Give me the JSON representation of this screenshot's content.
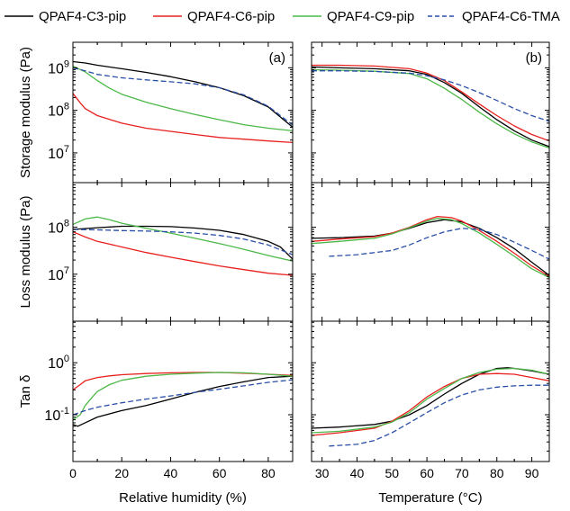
{
  "legend": {
    "placement": "top",
    "entries": [
      {
        "label": "QPAF4-C3-pip",
        "color": "#000000",
        "dash": false
      },
      {
        "label": "QPAF4-C6-pip",
        "color": "#e8201e",
        "dash": false
      },
      {
        "label": "QPAF4-C9-pip",
        "color": "#4cb848",
        "dash": false
      },
      {
        "label": "QPAF4-C6-TMA",
        "color": "#2a4fa8",
        "dash": true
      }
    ]
  },
  "columns": [
    {
      "panel_label": "(a)",
      "xlabel": "Relative humidity (%)",
      "xlim": [
        0,
        90
      ],
      "xticks": [
        "0",
        "20",
        "40",
        "60",
        "80"
      ],
      "xtick_values": [
        0,
        20,
        40,
        60,
        80
      ]
    },
    {
      "panel_label": "(b)",
      "xlabel": "Temperature (°C)",
      "xlim": [
        27,
        95
      ],
      "xticks": [
        "30",
        "40",
        "50",
        "60",
        "70",
        "80",
        "90"
      ],
      "xtick_values": [
        30,
        40,
        50,
        60,
        70,
        80,
        90
      ]
    }
  ],
  "rows": [
    {
      "ylabel": "Storage modulus (Pa)",
      "ylim_log10": [
        6.3,
        9.6
      ],
      "ticks": [
        {
          "base": "10",
          "exp": "9",
          "log": 9
        },
        {
          "base": "10",
          "exp": "8",
          "log": 8
        },
        {
          "base": "10",
          "exp": "7",
          "log": 7
        }
      ]
    },
    {
      "ylabel": "Loss modulus (Pa)",
      "ylim_log10": [
        6.0,
        8.95
      ],
      "ticks": [
        {
          "base": "10",
          "exp": "8",
          "log": 8
        },
        {
          "base": "10",
          "exp": "7",
          "log": 7
        }
      ]
    },
    {
      "ylabel": "Tan δ",
      "ylim_log10": [
        -1.9,
        0.8
      ],
      "ticks": [
        {
          "base": "10",
          "exp": "0",
          "log": 0
        },
        {
          "base": "10",
          "exp": "-1",
          "log": -1
        }
      ]
    }
  ],
  "chart_data": {
    "type": "line",
    "y_scale": "log",
    "grid": false,
    "panels": [
      {
        "row": 0,
        "col": 0,
        "series": [
          {
            "name": "QPAF4-C3-pip",
            "x": [
              0,
              5,
              10,
              20,
              30,
              40,
              50,
              60,
              70,
              80,
              90
            ],
            "y": [
              1400000000.0,
              1300000000.0,
              1150000000.0,
              950000000.0,
              780000000.0,
              620000000.0,
              470000000.0,
              340000000.0,
              220000000.0,
              120000000.0,
              40000000.0
            ]
          },
          {
            "name": "QPAF4-C6-pip",
            "x": [
              0,
              3,
              5,
              10,
              20,
              30,
              40,
              50,
              60,
              70,
              80,
              90
            ],
            "y": [
              250000000.0,
              150000000.0,
              110000000.0,
              75000000.0,
              50000000.0,
              38000000.0,
              32000000.0,
              27000000.0,
              23000000.0,
              21000000.0,
              19000000.0,
              17500000.0
            ]
          },
          {
            "name": "QPAF4-C9-pip",
            "x": [
              0,
              5,
              10,
              15,
              20,
              30,
              40,
              50,
              60,
              70,
              80,
              90
            ],
            "y": [
              1100000000.0,
              800000000.0,
              500000000.0,
              330000000.0,
              240000000.0,
              155000000.0,
              110000000.0,
              80000000.0,
              60000000.0,
              46000000.0,
              38000000.0,
              33000000.0
            ]
          },
          {
            "name": "QPAF4-C6-TMA",
            "x": [
              0,
              5,
              10,
              20,
              30,
              40,
              50,
              60,
              70,
              80,
              90
            ],
            "y": [
              1000000000.0,
              850000000.0,
              700000000.0,
              580000000.0,
              520000000.0,
              470000000.0,
              420000000.0,
              340000000.0,
              230000000.0,
              125000000.0,
              45000000.0
            ]
          }
        ]
      },
      {
        "row": 0,
        "col": 1,
        "series": [
          {
            "name": "QPAF4-C3-pip",
            "x": [
              27,
              35,
              45,
              55,
              60,
              65,
              70,
              75,
              80,
              85,
              90,
              95
            ],
            "y": [
              1050000000.0,
              1000000000.0,
              950000000.0,
              850000000.0,
              700000000.0,
              450000000.0,
              250000000.0,
              120000000.0,
              60000000.0,
              33000000.0,
              20000000.0,
              14000000.0
            ]
          },
          {
            "name": "QPAF4-C6-pip",
            "x": [
              27,
              35,
              45,
              55,
              60,
              65,
              70,
              75,
              80,
              85,
              90,
              95
            ],
            "y": [
              1150000000.0,
              1150000000.0,
              1100000000.0,
              950000000.0,
              750000000.0,
              500000000.0,
              270000000.0,
              140000000.0,
              75000000.0,
              43000000.0,
              27000000.0,
              19000000.0
            ]
          },
          {
            "name": "QPAF4-C9-pip",
            "x": [
              27,
              35,
              45,
              55,
              60,
              65,
              70,
              75,
              80,
              85,
              90,
              95
            ],
            "y": [
              900000000.0,
              880000000.0,
              830000000.0,
              730000000.0,
              550000000.0,
              330000000.0,
              180000000.0,
              90000000.0,
              48000000.0,
              28000000.0,
              18000000.0,
              13000000.0
            ]
          },
          {
            "name": "QPAF4-C6-TMA",
            "x": [
              27,
              35,
              45,
              55,
              60,
              65,
              70,
              75,
              80,
              85,
              90,
              95
            ],
            "y": [
              850000000.0,
              850000000.0,
              820000000.0,
              750000000.0,
              650000000.0,
              520000000.0,
              380000000.0,
              260000000.0,
              170000000.0,
              110000000.0,
              75000000.0,
              55000000.0
            ]
          }
        ]
      },
      {
        "row": 1,
        "col": 0,
        "series": [
          {
            "name": "QPAF4-C3-pip",
            "x": [
              0,
              10,
              20,
              30,
              40,
              50,
              60,
              70,
              80,
              85,
              90
            ],
            "y": [
              90000000.0,
              98000000.0,
              105000000.0,
              105000000.0,
              103000000.0,
              96000000.0,
              86000000.0,
              70000000.0,
              50000000.0,
              38000000.0,
              21000000.0
            ]
          },
          {
            "name": "QPAF4-C6-pip",
            "x": [
              0,
              5,
              10,
              20,
              30,
              40,
              50,
              60,
              70,
              80,
              90
            ],
            "y": [
              80000000.0,
              62000000.0,
              50000000.0,
              38000000.0,
              29000000.0,
              23000000.0,
              18500000.0,
              15000000.0,
              12500000.0,
              10500000.0,
              9500000.0
            ]
          },
          {
            "name": "QPAF4-C9-pip",
            "x": [
              0,
              5,
              10,
              15,
              20,
              30,
              40,
              50,
              60,
              70,
              80,
              90
            ],
            "y": [
              115000000.0,
              150000000.0,
              165000000.0,
              145000000.0,
              122000000.0,
              95000000.0,
              75000000.0,
              58000000.0,
              45000000.0,
              34000000.0,
              25000000.0,
              19000000.0
            ]
          },
          {
            "name": "QPAF4-C6-TMA",
            "x": [
              0,
              10,
              20,
              30,
              40,
              50,
              60,
              70,
              80,
              90
            ],
            "y": [
              90000000.0,
              88000000.0,
              85000000.0,
              83000000.0,
              80000000.0,
              75000000.0,
              67000000.0,
              56000000.0,
              42000000.0,
              26000000.0
            ]
          }
        ]
      },
      {
        "row": 1,
        "col": 1,
        "series": [
          {
            "name": "QPAF4-C3-pip",
            "x": [
              27,
              35,
              45,
              50,
              55,
              60,
              65,
              70,
              75,
              80,
              85,
              90,
              95
            ],
            "y": [
              58000000.0,
              60000000.0,
              65000000.0,
              75000000.0,
              95000000.0,
              125000000.0,
              145000000.0,
              130000000.0,
              95000000.0,
              60000000.0,
              35000000.0,
              18000000.0,
              9500000.0
            ]
          },
          {
            "name": "QPAF4-C6-pip",
            "x": [
              27,
              35,
              45,
              50,
              55,
              60,
              63,
              67,
              70,
              75,
              80,
              85,
              90,
              95
            ],
            "y": [
              50000000.0,
              56000000.0,
              63000000.0,
              75000000.0,
              100000000.0,
              145000000.0,
              170000000.0,
              160000000.0,
              135000000.0,
              85000000.0,
              50000000.0,
              28000000.0,
              15000000.0,
              9000000.0
            ]
          },
          {
            "name": "QPAF4-C9-pip",
            "x": [
              27,
              35,
              45,
              50,
              55,
              60,
              63,
              67,
              70,
              75,
              80,
              85,
              90,
              95
            ],
            "y": [
              45000000.0,
              50000000.0,
              58000000.0,
              72000000.0,
              98000000.0,
              135000000.0,
              155000000.0,
              145000000.0,
              120000000.0,
              75000000.0,
              43000000.0,
              24000000.0,
              13000000.0,
              8500000.0
            ]
          },
          {
            "name": "QPAF4-C6-TMA",
            "x": [
              32,
              40,
              50,
              55,
              60,
              65,
              70,
              75,
              80,
              85,
              90,
              95
            ],
            "y": [
              24000000.0,
              26000000.0,
              32000000.0,
              42000000.0,
              60000000.0,
              80000000.0,
              95000000.0,
              90000000.0,
              70000000.0,
              48000000.0,
              32000000.0,
              21000000.0
            ]
          }
        ]
      },
      {
        "row": 2,
        "col": 0,
        "series": [
          {
            "name": "QPAF4-C3-pip",
            "x": [
              0,
              2,
              5,
              10,
              20,
              30,
              40,
              50,
              60,
              70,
              80,
              90
            ],
            "y": [
              0.065,
              0.06,
              0.07,
              0.09,
              0.12,
              0.15,
              0.2,
              0.27,
              0.35,
              0.43,
              0.52,
              0.55
            ]
          },
          {
            "name": "QPAF4-C6-pip",
            "x": [
              0,
              3,
              5,
              10,
              15,
              20,
              30,
              40,
              50,
              60,
              70,
              80,
              90
            ],
            "y": [
              0.3,
              0.38,
              0.45,
              0.52,
              0.56,
              0.59,
              0.62,
              0.64,
              0.65,
              0.65,
              0.63,
              0.6,
              0.57
            ]
          },
          {
            "name": "QPAF4-C9-pip",
            "x": [
              0,
              3,
              5,
              8,
              10,
              15,
              20,
              30,
              40,
              50,
              60,
              70,
              80,
              90
            ],
            "y": [
              0.08,
              0.1,
              0.15,
              0.22,
              0.28,
              0.38,
              0.46,
              0.55,
              0.6,
              0.63,
              0.65,
              0.64,
              0.6,
              0.55
            ]
          },
          {
            "name": "QPAF4-C6-TMA",
            "x": [
              0,
              5,
              10,
              20,
              30,
              40,
              50,
              60,
              70,
              80,
              90
            ],
            "y": [
              0.1,
              0.12,
              0.14,
              0.17,
              0.2,
              0.23,
              0.27,
              0.31,
              0.36,
              0.42,
              0.47
            ]
          }
        ]
      },
      {
        "row": 2,
        "col": 1,
        "series": [
          {
            "name": "QPAF4-C3-pip",
            "x": [
              27,
              35,
              45,
              50,
              55,
              60,
              65,
              70,
              75,
              80,
              83,
              85,
              90,
              95
            ],
            "y": [
              0.055,
              0.058,
              0.065,
              0.075,
              0.1,
              0.15,
              0.25,
              0.4,
              0.6,
              0.78,
              0.8,
              0.78,
              0.7,
              0.6
            ]
          },
          {
            "name": "QPAF4-C6-pip",
            "x": [
              27,
              35,
              45,
              50,
              55,
              60,
              65,
              70,
              75,
              80,
              85,
              90,
              95
            ],
            "y": [
              0.04,
              0.045,
              0.055,
              0.075,
              0.12,
              0.22,
              0.35,
              0.5,
              0.6,
              0.62,
              0.6,
              0.52,
              0.45
            ]
          },
          {
            "name": "QPAF4-C9-pip",
            "x": [
              27,
              35,
              45,
              50,
              55,
              60,
              65,
              70,
              75,
              80,
              85,
              90,
              95
            ],
            "y": [
              0.045,
              0.048,
              0.058,
              0.072,
              0.11,
              0.2,
              0.32,
              0.5,
              0.65,
              0.75,
              0.78,
              0.72,
              0.6
            ]
          },
          {
            "name": "QPAF4-C6-TMA",
            "x": [
              32,
              40,
              45,
              50,
              55,
              60,
              65,
              70,
              75,
              80,
              85,
              90,
              95
            ],
            "y": [
              0.025,
              0.027,
              0.032,
              0.045,
              0.07,
              0.11,
              0.17,
              0.24,
              0.3,
              0.34,
              0.36,
              0.37,
              0.37
            ]
          }
        ]
      }
    ]
  }
}
